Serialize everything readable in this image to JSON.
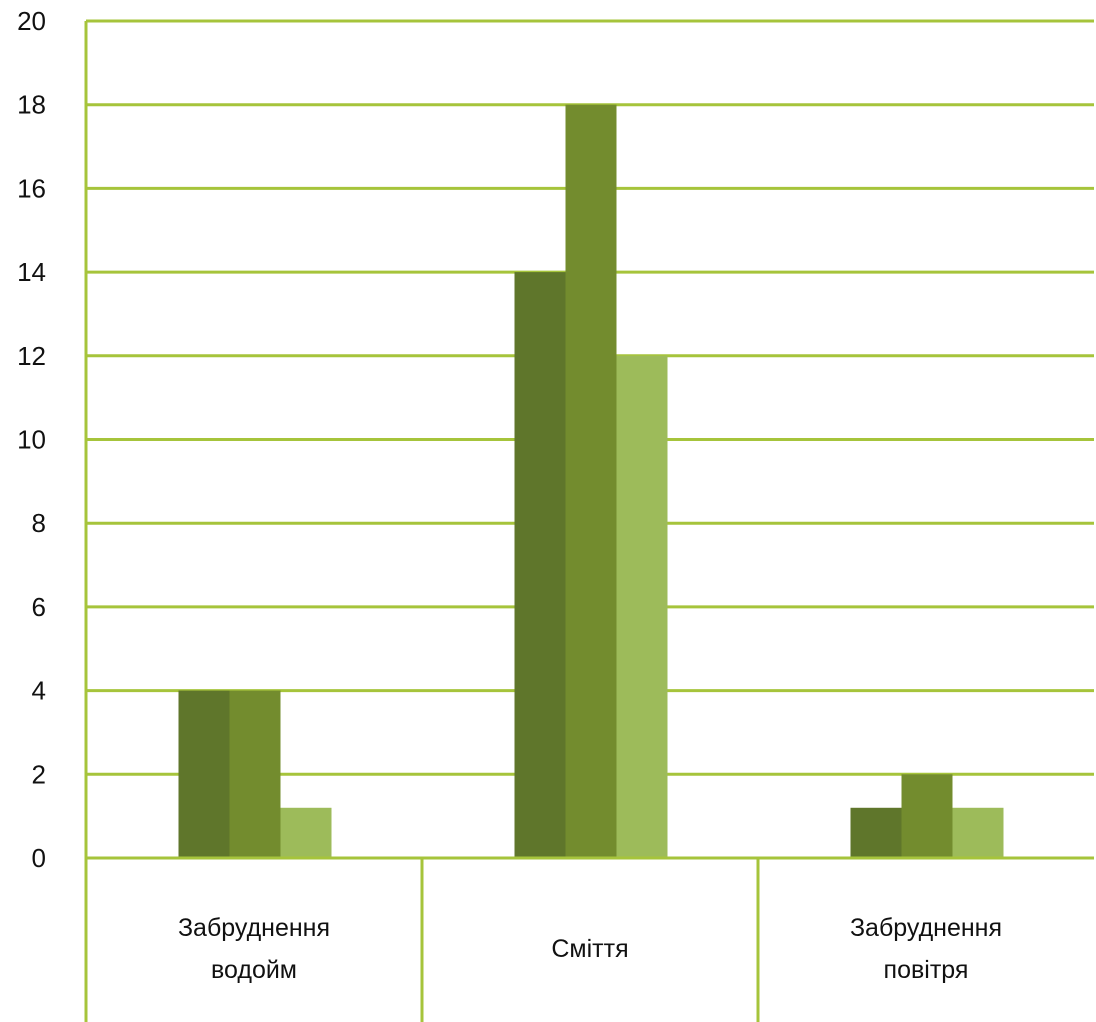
{
  "chart_data": {
    "type": "bar",
    "title": "",
    "xlabel": "",
    "ylabel": "",
    "categories": [
      [
        "Забруднення",
        "водойм"
      ],
      [
        "Сміття"
      ],
      [
        "Забруднення",
        "повітря"
      ]
    ],
    "series": [
      {
        "values": [
          4,
          14,
          1.2
        ],
        "color": "#5f762b"
      },
      {
        "values": [
          4,
          18,
          2
        ],
        "color": "#738c2e"
      },
      {
        "values": [
          1.2,
          12,
          1.2
        ],
        "color": "#9dbb5a"
      }
    ],
    "ylim": [
      0,
      20
    ],
    "yticks": [
      "0",
      "2",
      "4",
      "6",
      "8",
      "10",
      "12",
      "14",
      "16",
      "18",
      "20"
    ],
    "grid": true,
    "grid_color": "#a6c43b",
    "legend": "none"
  }
}
